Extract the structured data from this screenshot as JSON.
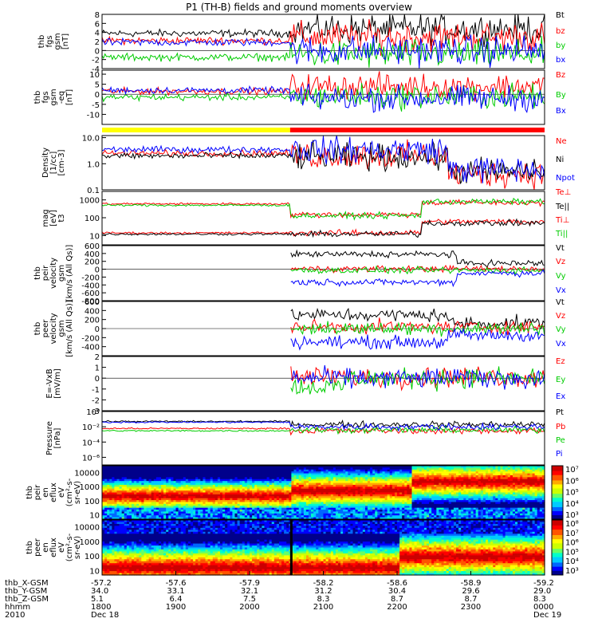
{
  "title": "P1 (TH-B) fields and ground moments overview",
  "colors": {
    "black": "#000000",
    "red": "#ff0000",
    "green": "#00cc00",
    "blue": "#0000ff",
    "yellow": "#ffff00"
  },
  "chart_data": [
    {
      "id": "fgs_full",
      "type": "line",
      "ylabel": [
        "thb",
        "fgs",
        "gsm",
        "[nT]"
      ],
      "ylim": [
        -4,
        8
      ],
      "yticks": [
        "8",
        "6",
        "4",
        "2",
        "0",
        "-2",
        "-4"
      ],
      "yticks_values": [
        8,
        6,
        4,
        2,
        0,
        -2,
        -4
      ],
      "series": [
        {
          "name": "Bt",
          "color": "#000000"
        },
        {
          "name": "bz",
          "color": "#ff0000"
        },
        {
          "name": "by",
          "color": "#00cc00"
        },
        {
          "name": "bx",
          "color": "#0000ff"
        }
      ],
      "approx": {
        "Bt": [
          [
            0,
            4
          ],
          [
            0.4,
            3.5
          ],
          [
            0.5,
            3.2
          ],
          [
            0.55,
            5
          ],
          [
            1,
            4.8
          ]
        ],
        "bz": [
          [
            0,
            2.5
          ],
          [
            0.4,
            2
          ],
          [
            0.55,
            4
          ],
          [
            1,
            3
          ]
        ],
        "by": [
          [
            0,
            -1.5
          ],
          [
            0.4,
            -1.2
          ],
          [
            0.55,
            -0.5
          ],
          [
            1,
            -1
          ]
        ],
        "bx": [
          [
            0,
            2
          ],
          [
            0.4,
            1.5
          ],
          [
            0.55,
            0
          ],
          [
            1,
            0
          ]
        ]
      }
    },
    {
      "id": "fgs_eq",
      "type": "line",
      "ylabel": [
        "thb",
        "fgs",
        "gsm",
        "-eq",
        "[nT]"
      ],
      "ylim": [
        -15,
        12
      ],
      "yticks": [
        "10",
        "5",
        "0",
        "-5",
        "-10"
      ],
      "yticks_values": [
        10,
        5,
        0,
        -5,
        -10
      ],
      "series": [
        {
          "name": "Bz",
          "color": "#ff0000"
        },
        {
          "name": "By",
          "color": "#00cc00"
        },
        {
          "name": "Bx",
          "color": "#0000ff"
        }
      ]
    },
    {
      "id": "density",
      "type": "line",
      "log": true,
      "ylabel": [
        "Density",
        "[1/cc]",
        "[cm-3]"
      ],
      "ylim": [
        0.1,
        12
      ],
      "yticks": [
        "10.0",
        "1.0",
        "0.1"
      ],
      "yticks_values": [
        10,
        1,
        0.1
      ],
      "series": [
        {
          "name": "Ne",
          "color": "#ff0000"
        },
        {
          "name": "Ni",
          "color": "#000000"
        },
        {
          "name": "Npot",
          "color": "#0000ff"
        }
      ]
    },
    {
      "id": "temperature",
      "type": "line",
      "log": true,
      "ylabel": [
        "mag",
        "[eV]",
        "t3"
      ],
      "ylim": [
        3,
        3000
      ],
      "yticks": [
        "1000",
        "100",
        "10"
      ],
      "yticks_values": [
        1000,
        100,
        10
      ],
      "series": [
        {
          "name": "Te⊥",
          "color": "#ff0000"
        },
        {
          "name": "Te||",
          "color": "#000000"
        },
        {
          "name": "Ti⊥",
          "color": "#ff0000"
        },
        {
          "name": "Ti||",
          "color": "#00cc00"
        }
      ]
    },
    {
      "id": "peir_velocity",
      "type": "line",
      "ylabel": [
        "thb",
        "peir",
        "velocity",
        "gsm",
        "[km/s (All Qs)]"
      ],
      "ylim": [
        -800,
        600
      ],
      "yticks": [
        "600",
        "400",
        "200",
        "0",
        "-200",
        "-400",
        "-600",
        "-800"
      ],
      "yticks_values": [
        600,
        400,
        200,
        0,
        -200,
        -400,
        -600,
        -800
      ],
      "series": [
        {
          "name": "Vt",
          "color": "#000000"
        },
        {
          "name": "Vz",
          "color": "#ff0000"
        },
        {
          "name": "Vy",
          "color": "#00cc00"
        },
        {
          "name": "Vx",
          "color": "#0000ff"
        }
      ]
    },
    {
      "id": "peer_velocity",
      "type": "line",
      "ylabel": [
        "thb",
        "peer",
        "velocity",
        "gsm",
        "[km/s (All Qs)]"
      ],
      "ylim": [
        -600,
        600
      ],
      "yticks": [
        "600",
        "400",
        "200",
        "0",
        "-200",
        "-400"
      ],
      "yticks_values": [
        600,
        400,
        200,
        0,
        -200,
        -400
      ],
      "series": [
        {
          "name": "Vt",
          "color": "#000000"
        },
        {
          "name": "Vz",
          "color": "#ff0000"
        },
        {
          "name": "Vy",
          "color": "#00cc00"
        },
        {
          "name": "Vx",
          "color": "#0000ff"
        }
      ]
    },
    {
      "id": "efield",
      "type": "line",
      "ylabel": [
        "E=-VxB",
        "[mV/m]"
      ],
      "ylim": [
        -3,
        2
      ],
      "yticks": [
        "2",
        "1",
        "0",
        "-1",
        "-2",
        "-3"
      ],
      "yticks_values": [
        2,
        1,
        0,
        -1,
        -2,
        -3
      ],
      "series": [
        {
          "name": "Ez",
          "color": "#ff0000"
        },
        {
          "name": "Ey",
          "color": "#00cc00"
        },
        {
          "name": "Ex",
          "color": "#0000ff"
        }
      ]
    },
    {
      "id": "pressure",
      "type": "line",
      "log": true,
      "ylabel": [
        "Pressure",
        "[nPa]"
      ],
      "ylim": [
        1e-07,
        1
      ],
      "yticks": [
        "10⁰",
        "10⁻²",
        "10⁻⁴",
        "10⁻⁶"
      ],
      "yticks_values": [
        1,
        0.01,
        0.0001,
        1e-06
      ],
      "series": [
        {
          "name": "Pt",
          "color": "#000000"
        },
        {
          "name": "Pb",
          "color": "#ff0000"
        },
        {
          "name": "Pe",
          "color": "#00cc00"
        },
        {
          "name": "Pi",
          "color": "#0000ff"
        }
      ]
    },
    {
      "id": "peir_spectrogram",
      "type": "heatmap",
      "log": true,
      "ylabel": [
        "thb",
        "peir",
        "en",
        "eflux",
        "eV",
        "(cm²-s-",
        "sr-eV)"
      ],
      "ylim": [
        5,
        30000
      ],
      "yticks": [
        "10000",
        "1000",
        "100",
        "10"
      ],
      "yticks_values": [
        10000,
        1000,
        100,
        10
      ],
      "colorbar": [
        "10⁷",
        "10⁶",
        "10⁵",
        "10⁴",
        "10³"
      ]
    },
    {
      "id": "peer_spectrogram",
      "type": "heatmap",
      "log": true,
      "ylabel": [
        "thb",
        "peer",
        "en",
        "eflux",
        "eV",
        "(cm²-s-",
        "sr-eV)"
      ],
      "ylim": [
        5,
        30000
      ],
      "yticks": [
        "10000",
        "1000",
        "100",
        "10"
      ],
      "yticks_values": [
        10000,
        1000,
        100,
        10
      ],
      "colorbar": [
        "10⁸",
        "10⁷",
        "10⁶",
        "10⁵",
        "10⁴",
        "10³"
      ]
    }
  ],
  "x_axis": {
    "rows": [
      {
        "label": "thb_X-GSM",
        "values": [
          "-57.2",
          "-57.6",
          "-57.9",
          "-58.2",
          "-58.6",
          "-58.9",
          "-59.2"
        ]
      },
      {
        "label": "thb_Y-GSM",
        "values": [
          "34.0",
          "33.1",
          "32.1",
          "31.2",
          "30.4",
          "29.6",
          "29.0"
        ]
      },
      {
        "label": "thb_Z-GSM",
        "values": [
          "5.1",
          "6.4",
          "7.5",
          "8.3",
          "8.7",
          "8.7",
          "8.3"
        ]
      },
      {
        "label": "hhmm",
        "values": [
          "1800",
          "1900",
          "2000",
          "2100",
          "2200",
          "2300",
          "0000"
        ]
      },
      {
        "label": "2010",
        "values": [
          "Dec 18",
          "",
          "",
          "",
          "",
          "",
          "Dec 19"
        ]
      }
    ]
  }
}
